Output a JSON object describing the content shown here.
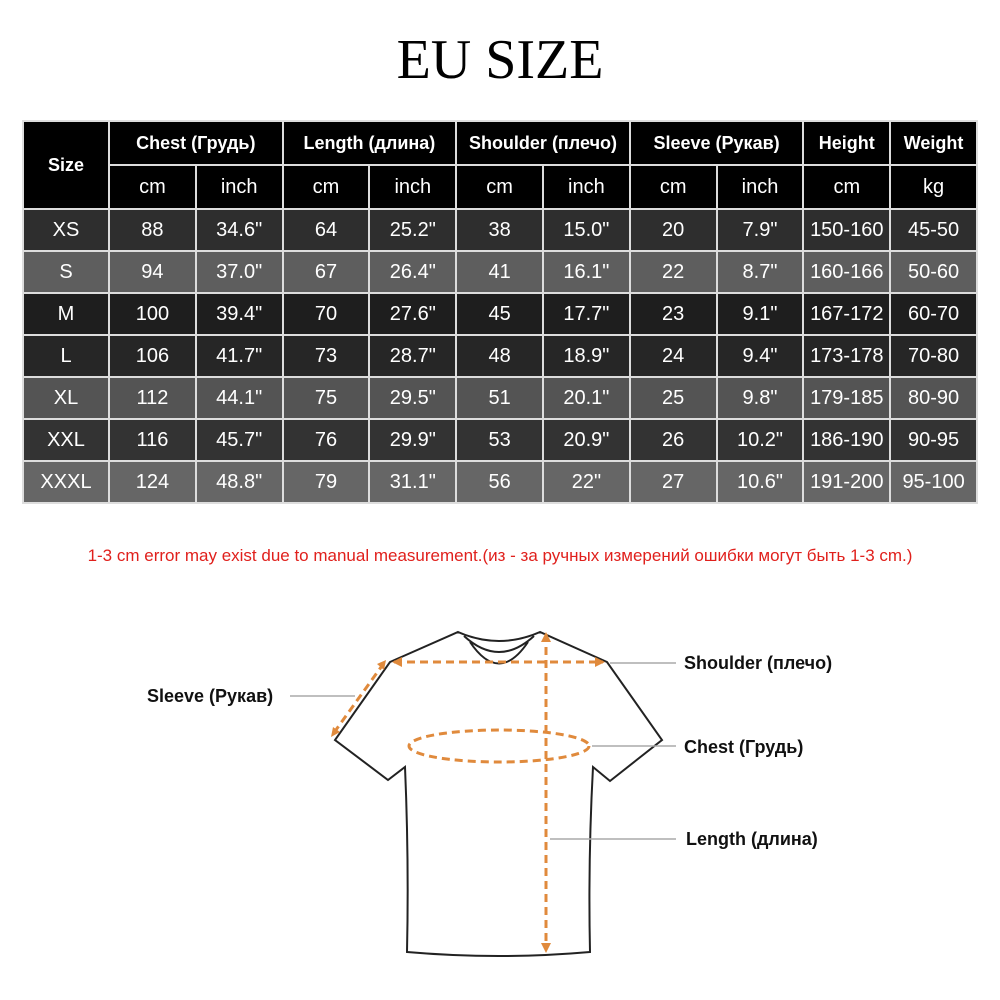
{
  "title": "EU SIZE",
  "table": {
    "header": {
      "size": "Size",
      "groups": [
        "Chest  (Грудь)",
        "Length (длина)",
        "Shoulder (плечо)",
        "Sleeve (Рукав)",
        "Height",
        "Weight"
      ],
      "units": [
        "cm",
        "inch",
        "cm",
        "inch",
        "cm",
        "inch",
        "cm",
        "inch",
        "cm",
        "kg"
      ]
    },
    "rows": [
      [
        "XS",
        "88",
        "34.6\"",
        "64",
        "25.2\"",
        "38",
        "15.0\"",
        "20",
        "7.9\"",
        "150-160",
        "45-50"
      ],
      [
        "S",
        "94",
        "37.0\"",
        "67",
        "26.4\"",
        "41",
        "16.1\"",
        "22",
        "8.7\"",
        "160-166",
        "50-60"
      ],
      [
        "M",
        "100",
        "39.4\"",
        "70",
        "27.6\"",
        "45",
        "17.7\"",
        "23",
        "9.1\"",
        "167-172",
        "60-70"
      ],
      [
        "L",
        "106",
        "41.7\"",
        "73",
        "28.7\"",
        "48",
        "18.9\"",
        "24",
        "9.4\"",
        "173-178",
        "70-80"
      ],
      [
        "XL",
        "112",
        "44.1\"",
        "75",
        "29.5\"",
        "51",
        "20.1\"",
        "25",
        "9.8\"",
        "179-185",
        "80-90"
      ],
      [
        "XXL",
        "116",
        "45.7\"",
        "76",
        "29.9\"",
        "53",
        "20.9\"",
        "26",
        "10.2\"",
        "186-190",
        "90-95"
      ],
      [
        "XXXL",
        "124",
        "48.8\"",
        "79",
        "31.1\"",
        "56",
        "22\"",
        "27",
        "10.6\"",
        "191-200",
        "95-100"
      ]
    ],
    "row_colors": [
      "#2e2e2e",
      "#5e5e5e",
      "#1e1e1e",
      "#262626",
      "#545454",
      "#333333",
      "#666666"
    ]
  },
  "note": {
    "en": "1-3 cm error may exist due to manual measurement.",
    "ru": "(из - за ручных измерений ошибки могут быть 1-3 cm.)"
  },
  "diagram": {
    "sleeve": "Sleeve (Рукав)",
    "shoulder": "Shoulder (плечо)",
    "chest": "Chest  (Грудь)",
    "length": "Length (длина)",
    "accent": "#e08a3c"
  }
}
